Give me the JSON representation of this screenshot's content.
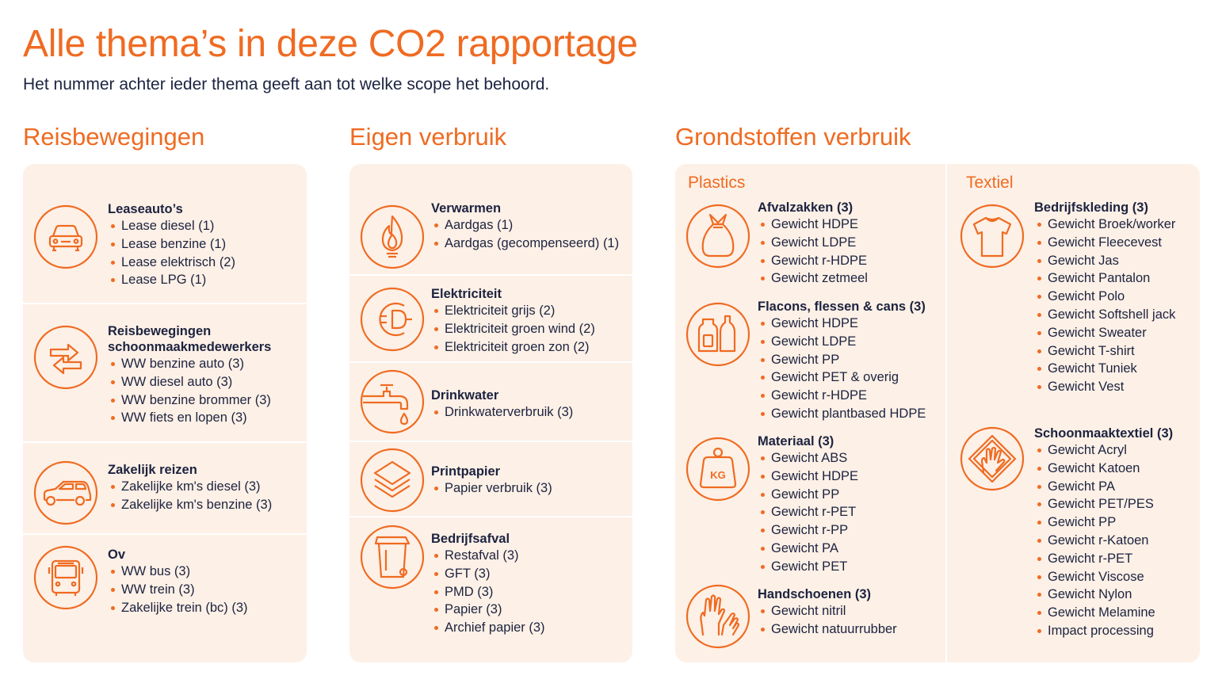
{
  "title": "Alle thema’s in deze CO2 rapportage",
  "subtitle": "Het nummer achter ieder thema geeft aan tot welke scope het behoord.",
  "colors": {
    "accent": "#ef6b22",
    "panel": "#fdf0e6",
    "text": "#1c2340"
  },
  "reis": {
    "heading": "Reisbewegingen",
    "blocks": [
      {
        "icon": "car-front-icon",
        "title": [
          "Leaseauto’s"
        ],
        "items": [
          "Lease diesel (1)",
          "Lease benzine (1)",
          "Lease elektrisch (2)",
          "Lease LPG (1)"
        ]
      },
      {
        "icon": "arrows-exchange-icon",
        "title": [
          "Reisbewegingen",
          "schoonmaakmedewerkers"
        ],
        "items": [
          "WW benzine auto (3)",
          "WW diesel auto (3)",
          "WW benzine brommer (3)",
          "WW fiets en lopen (3)"
        ]
      },
      {
        "icon": "car-side-icon",
        "title": [
          "Zakelijk reizen"
        ],
        "items": [
          "Zakelijke km's diesel (3)",
          "Zakelijke km's benzine (3)"
        ]
      },
      {
        "icon": "bus-icon",
        "title": [
          "Ov"
        ],
        "items": [
          "WW bus (3)",
          "WW trein (3)",
          "Zakelijke trein (bc) (3)"
        ]
      }
    ]
  },
  "eigen": {
    "heading": "Eigen verbruik",
    "blocks": [
      {
        "icon": "flame-icon",
        "title": [
          "Verwarmen"
        ],
        "items": [
          "Aardgas (1)",
          "Aardgas (gecompenseerd) (1)"
        ]
      },
      {
        "icon": "plug-icon",
        "title": [
          "Elektriciteit"
        ],
        "items": [
          "Elektriciteit grijs (2)",
          "Elektriciteit groen wind (2)",
          "Elektriciteit groen zon (2)"
        ]
      },
      {
        "icon": "faucet-icon",
        "title": [
          "Drinkwater"
        ],
        "items": [
          "Drinkwaterverbruik (3)"
        ]
      },
      {
        "icon": "paper-stack-icon",
        "title": [
          "Printpapier"
        ],
        "items": [
          "Papier verbruik (3)"
        ]
      },
      {
        "icon": "waste-bin-icon",
        "title": [
          "Bedrijfsafval"
        ],
        "items": [
          "Restafval (3)",
          "GFT (3)",
          "PMD (3)",
          "Papier (3)",
          "Archief papier (3)"
        ]
      }
    ]
  },
  "grond": {
    "heading": "Grondstoffen verbruik",
    "plastics": {
      "label": "Plastics",
      "blocks": [
        {
          "icon": "garbage-bag-icon",
          "title": [
            "Afvalzakken (3)"
          ],
          "items": [
            "Gewicht HDPE",
            "Gewicht LDPE",
            "Gewicht r-HDPE",
            "Gewicht zetmeel"
          ]
        },
        {
          "icon": "bottles-icon",
          "title": [
            "Flacons, flessen & cans (3)"
          ],
          "items": [
            "Gewicht HDPE",
            "Gewicht LDPE",
            "Gewicht PP",
            "Gewicht PET & overig",
            "Gewicht r-HDPE",
            "Gewicht plantbased HDPE"
          ]
        },
        {
          "icon": "weight-icon",
          "weight_label": "KG",
          "title": [
            "Materiaal (3)"
          ],
          "items": [
            "Gewicht ABS",
            "Gewicht HDPE",
            "Gewicht PP",
            "Gewicht r-PET",
            "Gewicht r-PP",
            "Gewicht PA",
            "Gewicht PET"
          ]
        },
        {
          "icon": "gloves-icon",
          "title": [
            "Handschoenen (3)"
          ],
          "items": [
            "Gewicht nitril",
            "Gewicht natuurrubber"
          ]
        }
      ]
    },
    "textiel": {
      "label": "Textiel",
      "blocks": [
        {
          "icon": "tshirt-icon",
          "title": [
            "Bedrijfskleding (3)"
          ],
          "items": [
            "Gewicht Broek/worker",
            "Gewicht Fleecevest",
            "Gewicht Jas",
            "Gewicht Pantalon",
            "Gewicht Polo",
            "Gewicht Softshell jack",
            "Gewicht Sweater",
            "Gewicht T-shirt",
            "Gewicht Tuniek",
            "Gewicht Vest"
          ]
        },
        {
          "icon": "cleaning-cloth-icon",
          "title": [
            "Schoonmaaktextiel (3)"
          ],
          "items": [
            "Gewicht Acryl",
            "Gewicht Katoen",
            "Gewicht PA",
            "Gewicht PET/PES",
            "Gewicht PP",
            "Gewicht r-Katoen",
            "Gewicht r-PET",
            "Gewicht Viscose",
            "Gewicht Nylon",
            "Gewicht Melamine",
            "Impact processing"
          ]
        }
      ]
    }
  }
}
